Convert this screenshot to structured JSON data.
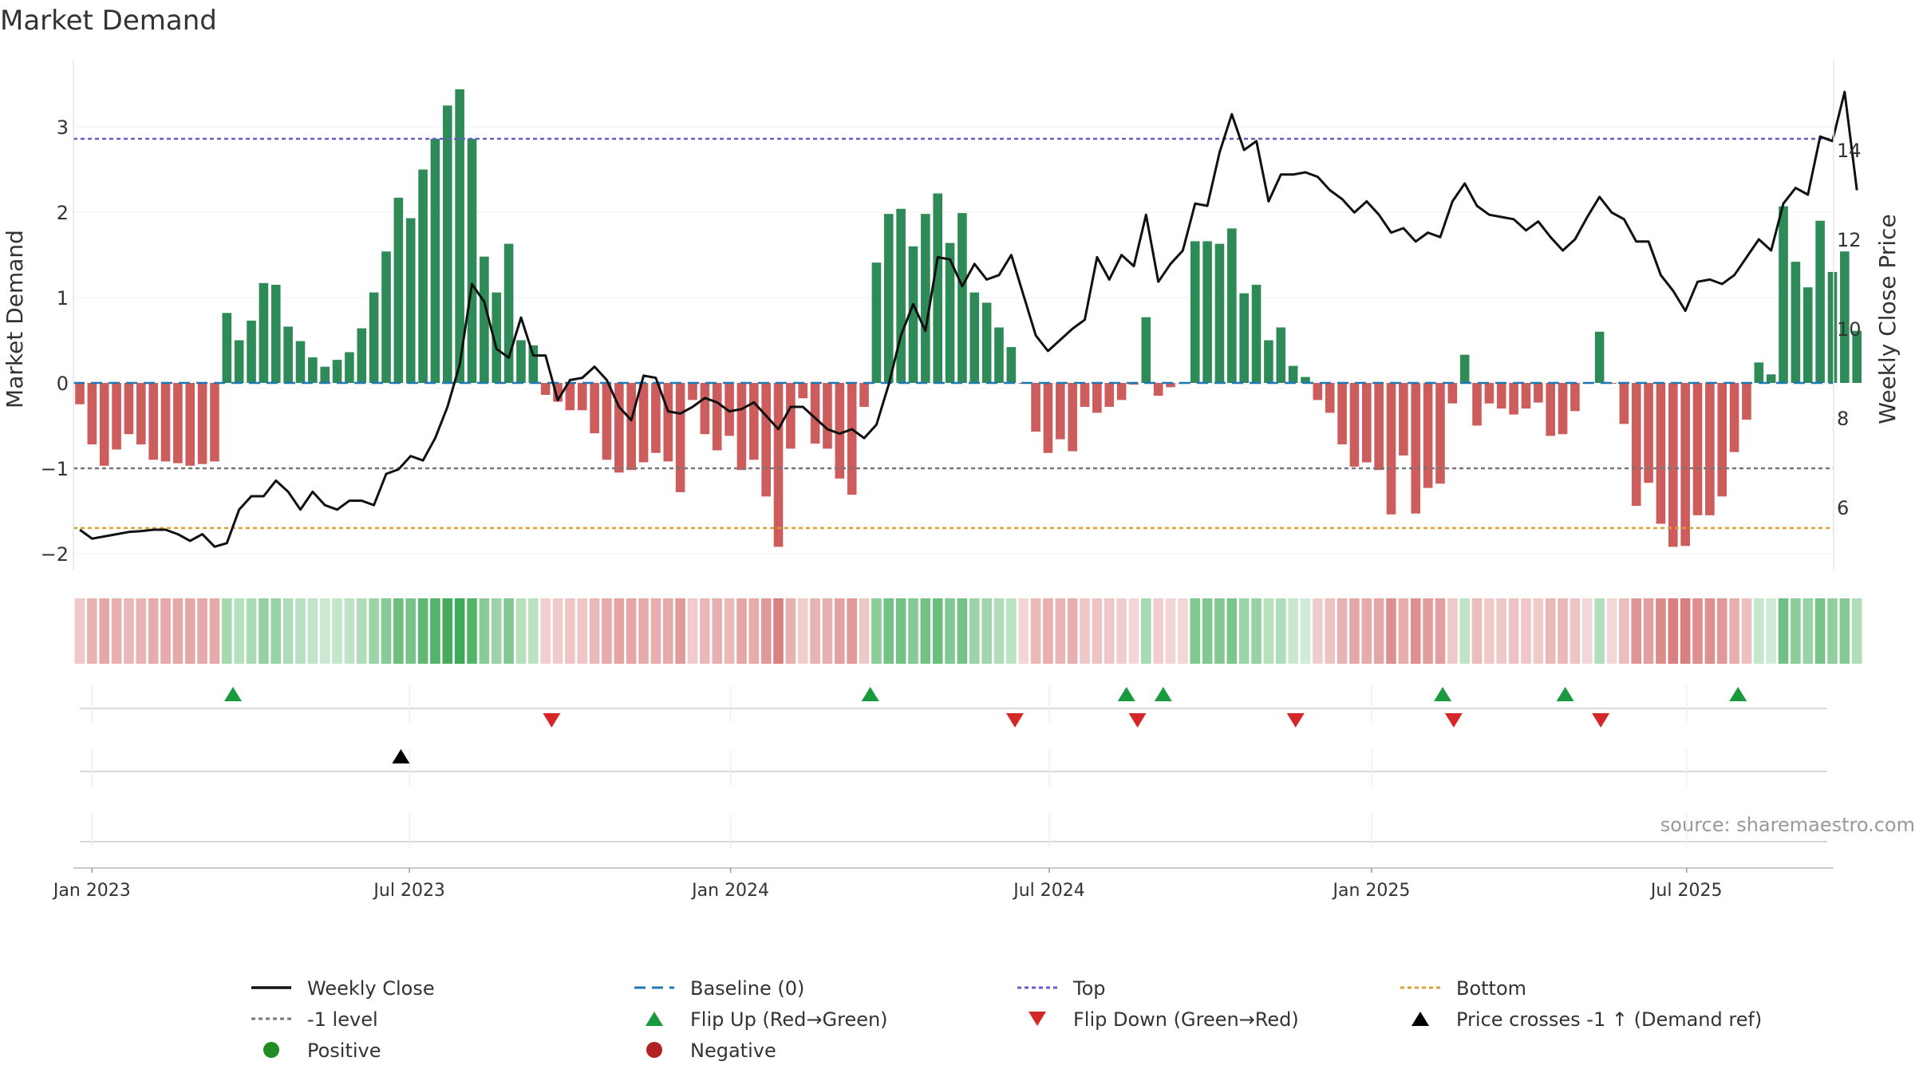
{
  "chart_data": {
    "type": "bar",
    "title": "Market Demand",
    "ylabel": "Market Demand",
    "y2label": "Weekly Close Price",
    "source": "source: sharemaestro.com",
    "ylim": [
      -2.25,
      3.8
    ],
    "y2lim": [
      4.5,
      15.7
    ],
    "yticks": [
      -2,
      -1,
      0,
      1,
      2,
      3
    ],
    "ytick_labels": [
      "−2",
      "−1",
      "0",
      "1",
      "2",
      "3"
    ],
    "y2ticks": [
      6,
      8,
      10,
      12,
      14
    ],
    "y2tick_labels": [
      "6",
      "8",
      "10",
      "12",
      "14"
    ],
    "xticks": [
      {
        "label": "Jan 2023",
        "week": 1.0
      },
      {
        "label": "Jul 2023",
        "week": 26.9
      },
      {
        "label": "Jan 2024",
        "week": 53.1
      },
      {
        "label": "Jul 2024",
        "week": 79.1
      },
      {
        "label": "Jan 2025",
        "week": 105.4
      },
      {
        "label": "Jul 2025",
        "week": 131.1
      }
    ],
    "levels": {
      "top": 2.86,
      "minus_one": -1,
      "bottom": -1.7,
      "baseline": 0
    },
    "colors": {
      "positive": "#2e8b57",
      "negative": "#cd5c5c",
      "price": "#111111",
      "top": "#6a5acd",
      "bottom": "#e0a030",
      "minus_one": "#777777",
      "baseline": "#1f77b4",
      "flip_up": "#1a9a3e",
      "flip_down": "#d62728",
      "cross": "#000000",
      "legend_positive": "#228b22",
      "legend_negative": "#b22222"
    },
    "series": [
      {
        "name": "Market Demand",
        "values": [
          -0.25,
          -0.72,
          -0.97,
          -0.78,
          -0.6,
          -0.72,
          -0.9,
          -0.92,
          -0.94,
          -0.97,
          -0.95,
          -0.92,
          0.82,
          0.5,
          0.73,
          1.17,
          1.15,
          0.66,
          0.49,
          0.3,
          0.19,
          0.27,
          0.36,
          0.64,
          1.06,
          1.54,
          2.17,
          1.93,
          2.5,
          2.86,
          3.25,
          3.44,
          2.86,
          1.48,
          1.06,
          1.63,
          0.5,
          0.44,
          -0.14,
          -0.22,
          -0.32,
          -0.32,
          -0.59,
          -0.9,
          -1.05,
          -1.02,
          -0.93,
          -0.82,
          -0.92,
          -1.28,
          -0.2,
          -0.6,
          -0.79,
          -0.62,
          -1.02,
          -0.9,
          -1.33,
          -1.92,
          -0.77,
          -0.18,
          -0.71,
          -0.77,
          -1.12,
          -1.31,
          -0.28,
          1.41,
          1.98,
          2.04,
          1.6,
          1.98,
          2.22,
          1.64,
          1.99,
          1.06,
          0.94,
          0.65,
          0.42,
          -0.01,
          -0.57,
          -0.82,
          -0.66,
          -0.8,
          -0.28,
          -0.35,
          -0.28,
          -0.2,
          -0.02,
          0.77,
          -0.15,
          -0.05,
          -0.01,
          1.66,
          1.66,
          1.63,
          1.81,
          1.05,
          1.15,
          0.5,
          0.65,
          0.2,
          0.07,
          -0.2,
          -0.35,
          -0.72,
          -0.98,
          -0.93,
          -1.02,
          -1.54,
          -0.85,
          -1.53,
          -1.23,
          -1.18,
          -0.24,
          0.33,
          -0.5,
          -0.24,
          -0.3,
          -0.37,
          -0.3,
          -0.23,
          -0.62,
          -0.6,
          -0.33,
          -0.01,
          0.6,
          -0.01,
          -0.48,
          -1.44,
          -1.17,
          -1.65,
          -1.92,
          -1.91,
          -1.55,
          -1.55,
          -1.33,
          -0.81,
          -0.43,
          0.24,
          0.1,
          2.07,
          1.42,
          1.12,
          1.9,
          1.3,
          1.54,
          0.61
        ]
      },
      {
        "name": "Weekly Close",
        "values": [
          5.5,
          5.3,
          5.35,
          5.4,
          5.45,
          5.47,
          5.5,
          5.5,
          5.4,
          5.25,
          5.4,
          5.12,
          5.2,
          5.95,
          6.25,
          6.25,
          6.6,
          6.35,
          5.95,
          6.35,
          6.05,
          5.95,
          6.15,
          6.15,
          6.05,
          6.75,
          6.85,
          7.15,
          7.05,
          7.55,
          8.25,
          9.2,
          11.0,
          10.6,
          9.55,
          9.35,
          10.25,
          9.4,
          9.4,
          8.4,
          8.85,
          8.9,
          9.15,
          8.85,
          8.25,
          7.95,
          8.95,
          8.9,
          8.15,
          8.1,
          8.25,
          8.45,
          8.35,
          8.15,
          8.2,
          8.35,
          8.05,
          7.75,
          8.25,
          8.25,
          8.0,
          7.75,
          7.65,
          7.75,
          7.55,
          7.85,
          8.75,
          9.85,
          10.55,
          9.95,
          11.6,
          11.55,
          10.95,
          11.45,
          11.1,
          11.2,
          11.65,
          10.75,
          9.85,
          9.5,
          9.75,
          10.0,
          10.2,
          11.6,
          11.1,
          11.65,
          11.4,
          12.55,
          11.05,
          11.45,
          11.75,
          12.8,
          12.75,
          13.95,
          14.8,
          14.0,
          14.2,
          12.85,
          13.45,
          13.45,
          13.5,
          13.4,
          13.1,
          12.9,
          12.6,
          12.85,
          12.55,
          12.15,
          12.25,
          11.95,
          12.15,
          12.05,
          12.85,
          13.25,
          12.75,
          12.55,
          12.5,
          12.45,
          12.2,
          12.4,
          12.05,
          11.75,
          12.0,
          12.5,
          12.95,
          12.6,
          12.45,
          11.95,
          11.95,
          11.2,
          10.85,
          10.4,
          11.05,
          11.1,
          11.0,
          11.2,
          11.6,
          12.0,
          11.75,
          12.8,
          13.15,
          13.0,
          14.3,
          14.2,
          15.3,
          13.1
        ]
      }
    ],
    "markers": {
      "flip_up": [
        12.5,
        64.5,
        85.4,
        88.4,
        111.2,
        121.2,
        135.3
      ],
      "flip_down": [
        38.5,
        76.3,
        86.3,
        99.2,
        112.1,
        124.1
      ],
      "price_cross": [
        26.2
      ]
    },
    "legend": [
      [
        "Weekly Close",
        "Baseline (0)",
        "Top",
        "Bottom"
      ],
      [
        "-1 level",
        "Flip Up (Red→Green)",
        "Flip Down (Green→Red)",
        "Price crosses -1 ↑ (Demand ref)"
      ],
      [
        "Positive",
        "Negative"
      ]
    ],
    "legend_placement": "bottom"
  }
}
